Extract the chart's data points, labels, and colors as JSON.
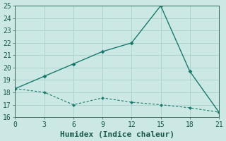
{
  "xlabel": "Humidex (Indice chaleur)",
  "xlim": [
    0,
    21
  ],
  "ylim": [
    16,
    25
  ],
  "xticks": [
    0,
    3,
    6,
    9,
    12,
    15,
    18,
    21
  ],
  "yticks": [
    16,
    17,
    18,
    19,
    20,
    21,
    22,
    23,
    24,
    25
  ],
  "line1_x": [
    0,
    3,
    6,
    9,
    12,
    15,
    18,
    21
  ],
  "line1_y": [
    18.3,
    19.3,
    20.3,
    21.3,
    22.0,
    25.0,
    19.7,
    16.4
  ],
  "line2_x": [
    0,
    3,
    6,
    9,
    12,
    15,
    18,
    21
  ],
  "line2_y": [
    18.3,
    18.0,
    17.0,
    17.55,
    17.2,
    17.0,
    16.75,
    16.4
  ],
  "line_color": "#1a7a6e",
  "bg_color": "#cce8e4",
  "grid_color": "#aacfcc",
  "tick_label_fontsize": 7,
  "xlabel_fontsize": 8,
  "line1_marker": "D",
  "line1_markersize": 3,
  "line2_marker": "D",
  "line2_markersize": 2.5
}
